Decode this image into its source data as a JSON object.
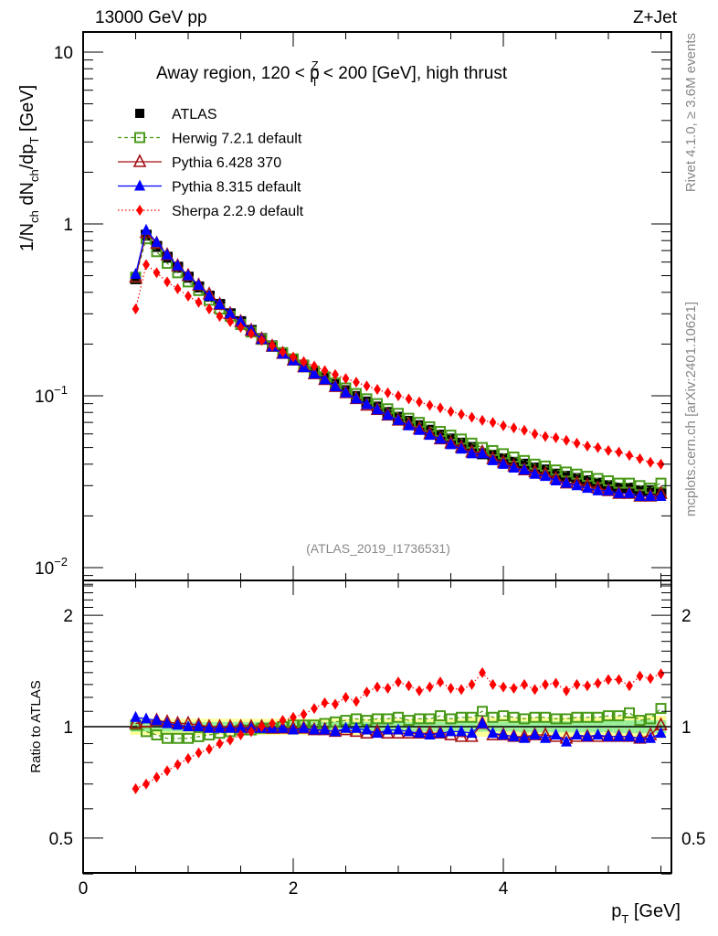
{
  "header": {
    "left_title": "13000 GeV pp",
    "right_title": "Z+Jet"
  },
  "side_labels": {
    "rivet": "Rivet 4.1.0, ≥ 3.6M events",
    "mcplots": "mcplots.cern.ch [arXiv:2401.10621]"
  },
  "chart_data": [
    {
      "type": "scatter",
      "title": "Away region, 120 < p_T^Z < 200 [GeV], high thrust",
      "title_parts": {
        "pre": "Away region, 120 < p",
        "sup": "Z",
        "sub": "T",
        "post": " < 200 [GeV], high thrust"
      },
      "analysis_label": "(ATLAS_2019_I1736531)",
      "xlabel": "p_T [GeV]",
      "xlabel_parts": {
        "main": "p",
        "sub": "T",
        "unit": " [GeV]"
      },
      "ylabel": "1/N_ch dN_ch/dp_T [GeV]",
      "ylabel_parts": {
        "a": "1/N",
        "a_sub": "ch",
        "b": " dN",
        "b_sub": "ch",
        "c": "/dp",
        "c_sub": "T",
        "d": " [GeV]"
      },
      "yscale": "log",
      "xlim": [
        0,
        5.6
      ],
      "ylim": [
        0.008,
        13
      ],
      "yticks": [
        {
          "value": 10,
          "label": "10"
        },
        {
          "value": 1,
          "label": "1"
        },
        {
          "value": 0.1,
          "label": "10",
          "exp": "−1"
        },
        {
          "value": 0.01,
          "label": "10",
          "exp": "−2"
        }
      ],
      "legend_position": "top-left",
      "x": [
        0.5,
        0.6,
        0.7,
        0.8,
        0.9,
        1.0,
        1.1,
        1.2,
        1.3,
        1.4,
        1.5,
        1.6,
        1.7,
        1.8,
        1.9,
        2.0,
        2.1,
        2.2,
        2.3,
        2.4,
        2.5,
        2.6,
        2.7,
        2.8,
        2.9,
        3.0,
        3.1,
        3.2,
        3.3,
        3.4,
        3.5,
        3.6,
        3.7,
        3.8,
        3.9,
        4.0,
        4.1,
        4.2,
        4.3,
        4.4,
        4.5,
        4.6,
        4.7,
        4.8,
        4.9,
        5.0,
        5.1,
        5.2,
        5.3,
        5.4,
        5.5
      ],
      "series": [
        {
          "name": "ATLAS",
          "color": "#000000",
          "marker": "square-filled",
          "line": "none",
          "values": [
            0.48,
            0.86,
            0.74,
            0.64,
            0.56,
            0.49,
            0.43,
            0.38,
            0.34,
            0.3,
            0.27,
            0.24,
            0.215,
            0.195,
            0.178,
            0.163,
            0.149,
            0.137,
            0.126,
            0.116,
            0.107,
            0.099,
            0.092,
            0.086,
            0.08,
            0.075,
            0.071,
            0.067,
            0.063,
            0.059,
            0.056,
            0.053,
            0.05,
            0.046,
            0.045,
            0.043,
            0.041,
            0.04,
            0.038,
            0.037,
            0.035,
            0.034,
            0.033,
            0.032,
            0.031,
            0.03,
            0.029,
            0.029,
            0.028,
            0.028,
            0.027
          ]
        },
        {
          "name": "Herwig 7.2.1 default",
          "color": "#4a9a1a",
          "marker": "square-open",
          "line": "dashed",
          "values": [
            0.49,
            0.82,
            0.69,
            0.59,
            0.52,
            0.46,
            0.41,
            0.36,
            0.32,
            0.29,
            0.26,
            0.235,
            0.213,
            0.194,
            0.178,
            0.164,
            0.151,
            0.139,
            0.129,
            0.119,
            0.111,
            0.103,
            0.096,
            0.09,
            0.084,
            0.079,
            0.074,
            0.07,
            0.066,
            0.062,
            0.059,
            0.056,
            0.053,
            0.05,
            0.048,
            0.046,
            0.044,
            0.042,
            0.04,
            0.039,
            0.037,
            0.036,
            0.035,
            0.034,
            0.033,
            0.032,
            0.031,
            0.031,
            0.03,
            0.029,
            0.031
          ]
        },
        {
          "name": "Pythia 6.428 370",
          "color": "#a50f15",
          "marker": "triangle-open",
          "line": "solid",
          "values": [
            0.49,
            0.89,
            0.77,
            0.66,
            0.57,
            0.5,
            0.44,
            0.39,
            0.34,
            0.3,
            0.27,
            0.24,
            0.214,
            0.194,
            0.176,
            0.161,
            0.147,
            0.134,
            0.124,
            0.113,
            0.104,
            0.096,
            0.088,
            0.083,
            0.077,
            0.072,
            0.068,
            0.064,
            0.06,
            0.056,
            0.053,
            0.05,
            0.047,
            0.047,
            0.043,
            0.041,
            0.039,
            0.037,
            0.036,
            0.035,
            0.033,
            0.031,
            0.031,
            0.03,
            0.029,
            0.028,
            0.027,
            0.027,
            0.026,
            0.026,
            0.027
          ]
        },
        {
          "name": "Pythia 8.315 default",
          "color": "#0000ff",
          "marker": "triangle-filled",
          "line": "solid",
          "values": [
            0.51,
            0.92,
            0.78,
            0.66,
            0.57,
            0.5,
            0.44,
            0.38,
            0.34,
            0.3,
            0.27,
            0.24,
            0.213,
            0.193,
            0.175,
            0.16,
            0.146,
            0.134,
            0.124,
            0.113,
            0.104,
            0.096,
            0.089,
            0.083,
            0.077,
            0.072,
            0.067,
            0.063,
            0.059,
            0.056,
            0.052,
            0.049,
            0.046,
            0.046,
            0.042,
            0.04,
            0.038,
            0.037,
            0.035,
            0.034,
            0.032,
            0.031,
            0.03,
            0.029,
            0.028,
            0.028,
            0.027,
            0.027,
            0.026,
            0.026,
            0.026
          ]
        },
        {
          "name": "Sherpa 2.2.9 default",
          "color": "#ff0000",
          "marker": "diamond-filled",
          "line": "dotted",
          "values": [
            0.32,
            0.58,
            0.52,
            0.46,
            0.42,
            0.38,
            0.35,
            0.32,
            0.29,
            0.27,
            0.25,
            0.23,
            0.21,
            0.195,
            0.18,
            0.168,
            0.158,
            0.149,
            0.14,
            0.133,
            0.126,
            0.12,
            0.114,
            0.109,
            0.104,
            0.1,
            0.096,
            0.092,
            0.088,
            0.085,
            0.081,
            0.078,
            0.075,
            0.072,
            0.07,
            0.067,
            0.065,
            0.063,
            0.06,
            0.058,
            0.057,
            0.055,
            0.053,
            0.051,
            0.05,
            0.048,
            0.047,
            0.045,
            0.043,
            0.041,
            0.04
          ]
        }
      ]
    },
    {
      "type": "scatter",
      "ylabel": "Ratio to ATLAS",
      "xlabel": "p_T [GeV]",
      "yscale": "log",
      "xlim": [
        0,
        5.6
      ],
      "ylim": [
        0.4,
        2.5
      ],
      "yticks": [
        {
          "value": 2,
          "label": "2"
        },
        {
          "value": 1,
          "label": "1"
        },
        {
          "value": 0.5,
          "label": "0.5"
        }
      ],
      "xticks": [
        {
          "value": 0,
          "label": "0"
        },
        {
          "value": 2,
          "label": "2"
        },
        {
          "value": 4,
          "label": "4"
        }
      ],
      "band_inner_halfwidth": [
        0.03,
        0.03,
        0.03,
        0.03,
        0.03,
        0.03,
        0.03,
        0.03,
        0.03,
        0.03,
        0.03,
        0.03,
        0.03,
        0.03,
        0.03,
        0.03,
        0.03,
        0.03,
        0.03,
        0.03,
        0.03,
        0.03,
        0.03,
        0.03,
        0.03,
        0.03,
        0.03,
        0.03,
        0.03,
        0.03,
        0.03,
        0.03,
        0.03,
        0.03,
        0.03,
        0.03,
        0.03,
        0.035,
        0.035,
        0.035,
        0.035,
        0.035,
        0.035,
        0.035,
        0.035,
        0.035,
        0.04,
        0.04,
        0.04,
        0.04,
        0.04
      ],
      "band_outer_halfwidth": [
        0.05,
        0.05,
        0.05,
        0.05,
        0.05,
        0.05,
        0.05,
        0.05,
        0.05,
        0.05,
        0.05,
        0.05,
        0.05,
        0.05,
        0.05,
        0.05,
        0.05,
        0.05,
        0.05,
        0.05,
        0.05,
        0.05,
        0.05,
        0.05,
        0.05,
        0.05,
        0.05,
        0.05,
        0.05,
        0.05,
        0.05,
        0.05,
        0.06,
        0.06,
        0.06,
        0.06,
        0.06,
        0.06,
        0.06,
        0.06,
        0.06,
        0.06,
        0.06,
        0.06,
        0.06,
        0.06,
        0.07,
        0.07,
        0.07,
        0.07,
        0.07
      ],
      "band_colors": {
        "outer": "#ffff99",
        "inner": "#99ee99"
      },
      "ratios": [
        {
          "name": "Herwig 7.2.1 default",
          "color": "#4a9a1a",
          "marker": "square-open",
          "line": "dashed",
          "values": [
            1.01,
            0.97,
            0.95,
            0.93,
            0.93,
            0.93,
            0.94,
            0.95,
            0.96,
            0.97,
            0.98,
            0.98,
            0.99,
            0.99,
            1.0,
            1.01,
            1.01,
            1.01,
            1.02,
            1.03,
            1.04,
            1.05,
            1.04,
            1.05,
            1.05,
            1.06,
            1.04,
            1.05,
            1.05,
            1.07,
            1.05,
            1.06,
            1.06,
            1.1,
            1.06,
            1.07,
            1.06,
            1.05,
            1.06,
            1.06,
            1.05,
            1.05,
            1.06,
            1.06,
            1.06,
            1.07,
            1.07,
            1.09,
            1.04,
            1.05,
            1.12
          ]
        },
        {
          "name": "Pythia 6.428 370",
          "color": "#a50f15",
          "marker": "triangle-open",
          "line": "solid",
          "values": [
            1.02,
            1.03,
            1.04,
            1.03,
            1.02,
            1.02,
            1.01,
            1.0,
            1.0,
            1.0,
            1.0,
            1.0,
            1.0,
            0.99,
            0.99,
            0.99,
            0.99,
            0.98,
            0.98,
            0.97,
            0.98,
            0.97,
            0.96,
            0.97,
            0.96,
            0.96,
            0.96,
            0.96,
            0.96,
            0.96,
            0.95,
            0.94,
            0.94,
            1.02,
            0.95,
            0.95,
            0.94,
            0.94,
            0.95,
            0.95,
            0.94,
            0.93,
            0.94,
            0.94,
            0.94,
            0.94,
            0.94,
            0.94,
            0.93,
            0.95,
            1.01
          ]
        },
        {
          "name": "Pythia 8.315 default",
          "color": "#0000ff",
          "marker": "triangle-filled",
          "line": "solid",
          "values": [
            1.06,
            1.05,
            1.04,
            1.02,
            1.01,
            1.0,
            1.0,
            0.99,
            0.99,
            0.99,
            0.99,
            0.99,
            0.99,
            0.99,
            0.99,
            0.98,
            0.99,
            0.98,
            0.98,
            0.97,
            0.99,
            0.99,
            0.98,
            0.96,
            0.98,
            0.98,
            0.97,
            0.96,
            0.95,
            0.96,
            0.97,
            0.97,
            0.96,
            1.02,
            0.96,
            0.95,
            0.94,
            0.93,
            0.95,
            0.93,
            0.95,
            0.91,
            0.95,
            0.94,
            0.95,
            0.94,
            0.94,
            0.94,
            0.93,
            0.93,
            0.96
          ]
        },
        {
          "name": "Sherpa 2.2.9 default",
          "color": "#ff0000",
          "marker": "diamond-filled",
          "line": "dotted",
          "values": [
            0.68,
            0.7,
            0.73,
            0.76,
            0.79,
            0.82,
            0.85,
            0.87,
            0.9,
            0.92,
            0.95,
            0.97,
            1.0,
            1.02,
            1.04,
            1.06,
            1.08,
            1.12,
            1.16,
            1.15,
            1.2,
            1.17,
            1.24,
            1.28,
            1.27,
            1.32,
            1.29,
            1.25,
            1.28,
            1.32,
            1.27,
            1.26,
            1.3,
            1.4,
            1.3,
            1.28,
            1.27,
            1.3,
            1.26,
            1.3,
            1.31,
            1.25,
            1.3,
            1.29,
            1.31,
            1.34,
            1.34,
            1.29,
            1.37,
            1.35,
            1.39
          ]
        }
      ]
    }
  ]
}
